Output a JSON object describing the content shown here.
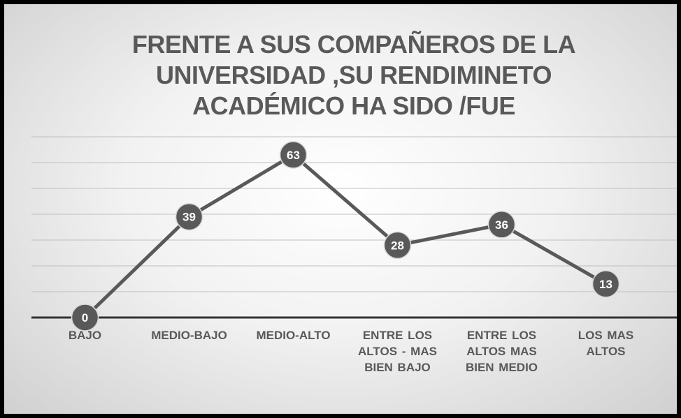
{
  "chart_data": {
    "type": "line",
    "title": "FRENTE A SUS COMPAÑEROS DE LA UNIVERSIDAD ,SU RENDIMINETO ACADÉMICO HA SIDO /FUE",
    "categories": [
      "BAJO",
      "MEDIO-BAJO",
      "MEDIO-ALTO",
      "ENTRE LOS ALTOS - MAS BIEN BAJO",
      "ENTRE LOS ALTOS MAS BIEN MEDIO",
      "LOS MAS ALTOS"
    ],
    "values": [
      0,
      39,
      63,
      28,
      36,
      13
    ],
    "color": "#595959",
    "ylim": [
      0,
      70
    ],
    "yticks": [
      0,
      10,
      20,
      30,
      40,
      50,
      60,
      70
    ],
    "grid": true
  }
}
